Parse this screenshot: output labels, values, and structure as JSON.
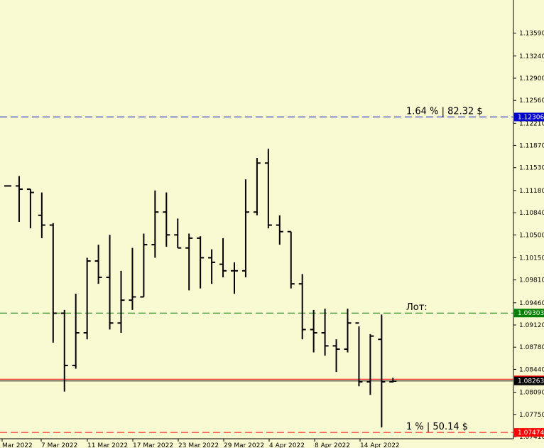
{
  "chart_data": {
    "type": "ohlc",
    "title": "",
    "xlabel": "",
    "ylabel": "",
    "ylim": [
      1.0741,
      1.1388
    ],
    "grid": false,
    "price_ticks": [
      "1.13590",
      "1.13240",
      "1.12900",
      "1.12560",
      "1.12210",
      "1.11870",
      "1.11530",
      "1.11180",
      "1.10840",
      "1.10500",
      "1.10150",
      "1.09810",
      "1.09460",
      "1.09120",
      "1.08780",
      "1.08440",
      "1.08090",
      "1.07750",
      "1.07410"
    ],
    "date_ticks": [
      "Mar 2022",
      "7 Mar 2022",
      "11 Mar 2022",
      "17 Mar 2022",
      "23 Mar 2022",
      "29 Mar 2022",
      "4 Apr 2022",
      "8 Apr 2022",
      "14 Apr 2022"
    ],
    "bars": [
      {
        "o": 1.1125,
        "h": 1.1125,
        "l": 1.1125,
        "c": 1.1125
      },
      {
        "o": 1.1125,
        "h": 1.114,
        "l": 1.107,
        "c": 1.112
      },
      {
        "o": 1.112,
        "h": 1.112,
        "l": 1.106,
        "c": 1.1115
      },
      {
        "o": 1.108,
        "h": 1.1115,
        "l": 1.1045,
        "c": 1.1065
      },
      {
        "o": 1.1065,
        "h": 1.1068,
        "l": 1.0885,
        "c": 1.093
      },
      {
        "o": 1.093,
        "h": 1.0935,
        "l": 1.081,
        "c": 1.085
      },
      {
        "o": 1.085,
        "h": 1.096,
        "l": 1.0845,
        "c": 1.09
      },
      {
        "o": 1.09,
        "h": 1.1015,
        "l": 1.089,
        "c": 1.101
      },
      {
        "o": 1.101,
        "h": 1.1035,
        "l": 1.0975,
        "c": 1.0985
      },
      {
        "o": 1.0985,
        "h": 1.105,
        "l": 1.0905,
        "c": 1.0915
      },
      {
        "o": 1.0915,
        "h": 1.0995,
        "l": 1.09,
        "c": 1.095
      },
      {
        "o": 1.095,
        "h": 1.103,
        "l": 1.0935,
        "c": 1.0955
      },
      {
        "o": 1.0955,
        "h": 1.1052,
        "l": 1.0955,
        "c": 1.1035
      },
      {
        "o": 1.1035,
        "h": 1.1118,
        "l": 1.1015,
        "c": 1.1085
      },
      {
        "o": 1.1085,
        "h": 1.1115,
        "l": 1.1032,
        "c": 1.105
      },
      {
        "o": 1.105,
        "h": 1.1075,
        "l": 1.103,
        "c": 1.103
      },
      {
        "o": 1.103,
        "h": 1.1052,
        "l": 1.0965,
        "c": 1.1045
      },
      {
        "o": 1.1045,
        "h": 1.1048,
        "l": 1.0968,
        "c": 1.1015
      },
      {
        "o": 1.1015,
        "h": 1.1028,
        "l": 1.0975,
        "c": 1.1008
      },
      {
        "o": 1.1005,
        "h": 1.1045,
        "l": 1.0985,
        "c": 1.0995
      },
      {
        "o": 1.0995,
        "h": 1.1008,
        "l": 1.096,
        "c": 1.0995
      },
      {
        "o": 1.0995,
        "h": 1.1135,
        "l": 1.0985,
        "c": 1.1085
      },
      {
        "o": 1.1085,
        "h": 1.1168,
        "l": 1.108,
        "c": 1.116
      },
      {
        "o": 1.116,
        "h": 1.1182,
        "l": 1.106,
        "c": 1.1065
      },
      {
        "o": 1.1065,
        "h": 1.108,
        "l": 1.1035,
        "c": 1.1055
      },
      {
        "o": 1.1055,
        "h": 1.1055,
        "l": 1.0968,
        "c": 1.0975
      },
      {
        "o": 1.0975,
        "h": 1.099,
        "l": 1.089,
        "c": 1.0905
      },
      {
        "o": 1.0905,
        "h": 1.0935,
        "l": 1.087,
        "c": 1.09
      },
      {
        "o": 1.09,
        "h": 1.0937,
        "l": 1.0865,
        "c": 1.088
      },
      {
        "o": 1.088,
        "h": 1.089,
        "l": 1.084,
        "c": 1.0875
      },
      {
        "o": 1.0875,
        "h": 1.0937,
        "l": 1.087,
        "c": 1.0915
      },
      {
        "o": 1.0915,
        "h": 1.091,
        "l": 1.0818,
        "c": 1.0825
      },
      {
        "o": 1.0825,
        "h": 1.0898,
        "l": 1.0805,
        "c": 1.0895
      },
      {
        "o": 1.089,
        "h": 1.0928,
        "l": 1.0755,
        "c": 1.0825
      },
      {
        "o": 1.0825,
        "h": 1.0831,
        "l": 1.0824,
        "c": 1.0826
      }
    ],
    "levels": [
      {
        "price": 1.12306,
        "label": "1.12306",
        "annotation": "1.64 % | 82.32 $",
        "color": "#0000CC",
        "dash": true
      },
      {
        "price": 1.09303,
        "label": "1.09303",
        "annotation": "Лот:",
        "color": "#008000",
        "dash": true
      },
      {
        "price": 1.08263,
        "label": "1.08263",
        "annotation": "",
        "color": "#000000",
        "dash": false
      },
      {
        "price": 1.07474,
        "label": "1.07474",
        "annotation": "1 % | 50.14 $",
        "color": "#FF0000",
        "dash": true
      }
    ],
    "colors": {
      "background": "#FAFAD2",
      "bars": "#000000",
      "tag_blue": "#0000CC",
      "tag_green": "#008000",
      "tag_black": "#000000",
      "tag_red": "#FF0000",
      "tag_text": "#FFFFFF"
    }
  }
}
